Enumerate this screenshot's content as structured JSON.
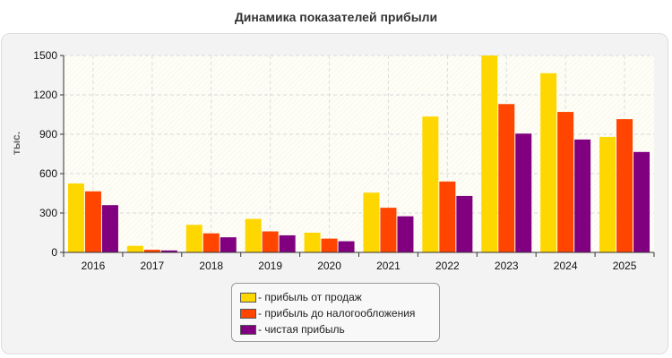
{
  "chart_data": {
    "type": "bar",
    "title": "Динамика показателей прибыли",
    "ylabel": "тыс.",
    "xlabel": "",
    "ylim": [
      0,
      1500
    ],
    "yticks": [
      0,
      300,
      600,
      900,
      1200,
      1500
    ],
    "grid": true,
    "legend_position": "bottom",
    "categories": [
      "2016",
      "2017",
      "2018",
      "2019",
      "2020",
      "2021",
      "2022",
      "2023",
      "2024",
      "2025"
    ],
    "series": [
      {
        "name": "- прибыль от продаж",
        "color": "#FFD700",
        "values": [
          525,
          50,
          210,
          255,
          150,
          455,
          1035,
          1500,
          1365,
          880
        ]
      },
      {
        "name": "- прибыль до налогообложения",
        "color": "#FF4500",
        "values": [
          465,
          20,
          145,
          160,
          105,
          340,
          540,
          1130,
          1070,
          1015
        ]
      },
      {
        "name": "- чистая прибыль",
        "color": "#800080",
        "values": [
          360,
          15,
          115,
          130,
          85,
          275,
          430,
          905,
          860,
          765
        ]
      }
    ]
  }
}
